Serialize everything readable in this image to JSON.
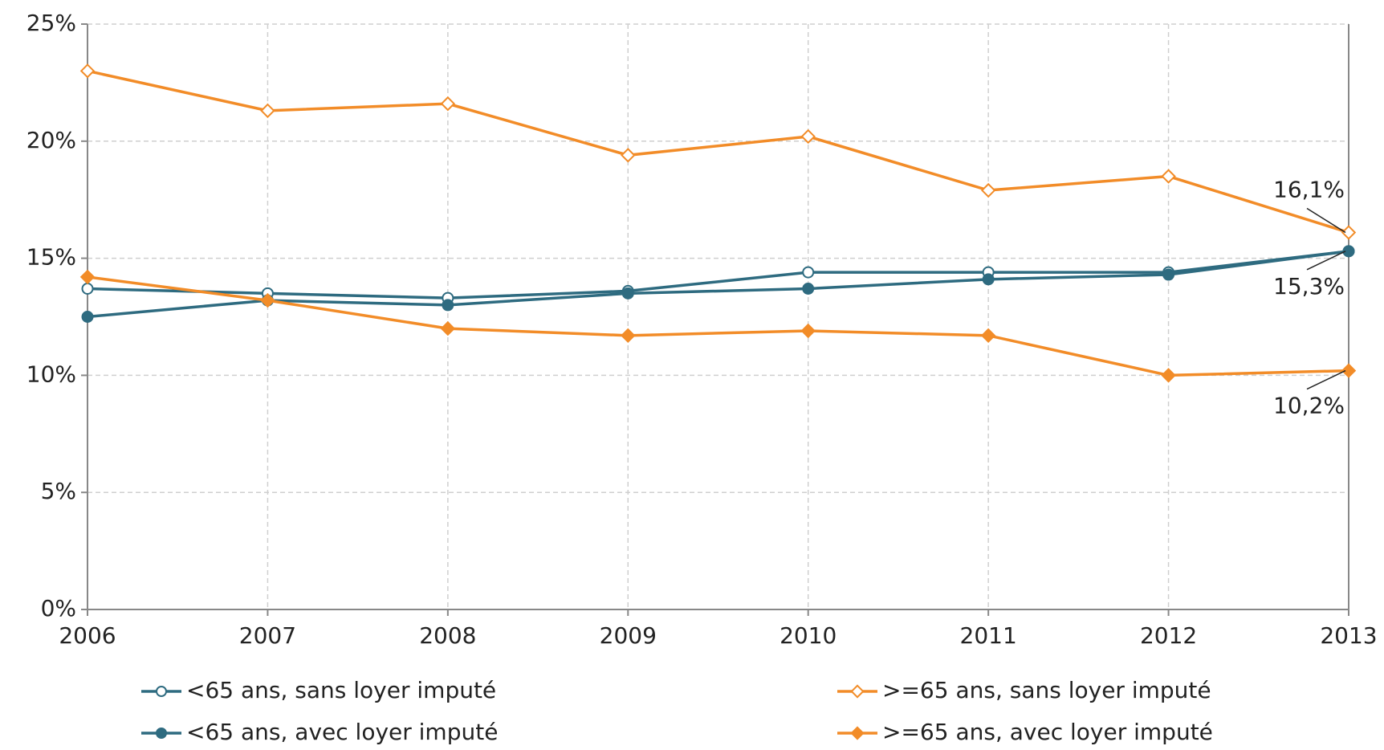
{
  "chart_data": {
    "type": "line",
    "categories": [
      "2006",
      "2007",
      "2008",
      "2009",
      "2010",
      "2011",
      "2012",
      "2013"
    ],
    "ylim": [
      0,
      25
    ],
    "yticks": [
      {
        "value": 0,
        "label": "0%"
      },
      {
        "value": 5,
        "label": "5%"
      },
      {
        "value": 10,
        "label": "10%"
      },
      {
        "value": 15,
        "label": "15%"
      },
      {
        "value": 20,
        "label": "20%"
      },
      {
        "value": 25,
        "label": "25%"
      }
    ],
    "grid": true,
    "series": [
      {
        "name": "<65 ans, sans loyer imputé",
        "color": "#2e6b80",
        "marker": "circle",
        "filled": false,
        "values": [
          13.7,
          13.5,
          13.3,
          13.6,
          14.4,
          14.4,
          14.4,
          15.3
        ]
      },
      {
        "name": "<65 ans, avec loyer imputé",
        "color": "#2e6b80",
        "marker": "circle",
        "filled": true,
        "values": [
          12.5,
          13.2,
          13.0,
          13.5,
          13.7,
          14.1,
          14.3,
          15.3
        ],
        "value_labels": [
          null,
          null,
          null,
          null,
          null,
          null,
          null,
          "15,3%"
        ]
      },
      {
        "name": ">=65 ans, sans loyer imputé",
        "color": "#f28c28",
        "marker": "diamond",
        "filled": false,
        "values": [
          23.0,
          21.3,
          21.6,
          19.4,
          20.2,
          17.9,
          18.5,
          16.1
        ],
        "value_labels": [
          null,
          null,
          null,
          null,
          null,
          null,
          null,
          "16,1%"
        ]
      },
      {
        "name": ">=65 ans, avec loyer imputé",
        "color": "#f28c28",
        "marker": "diamond",
        "filled": true,
        "values": [
          14.2,
          13.2,
          12.0,
          11.7,
          11.9,
          11.7,
          10.0,
          10.2
        ],
        "value_labels": [
          null,
          null,
          null,
          null,
          null,
          null,
          null,
          "10,2%"
        ]
      }
    ]
  }
}
